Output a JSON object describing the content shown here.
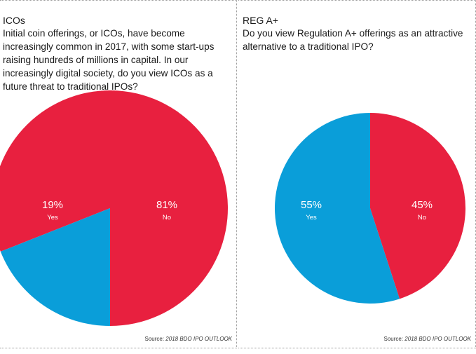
{
  "colors": {
    "no": "#e8203f",
    "yes": "#0a9ed9"
  },
  "left": {
    "title": "ICOs",
    "question": "Initial coin offerings, or ICOs, have become increasingly common in 2017, with some start-ups raising hundreds of millions in capital. In our increasingly digital society, do you view ICOs as a future threat to traditional IPOs?",
    "source_label": "Source:",
    "source_name": "2018 BDO IPO OUTLOOK"
  },
  "right": {
    "title": "REG A+",
    "question": "Do you view Regulation A+ offerings as an attractive alternative to a traditional IPO?",
    "source_label": "Source:",
    "source_name": "2018 BDO IPO OUTLOOK"
  },
  "chart_data": [
    {
      "type": "pie",
      "title": "ICOs",
      "slices": [
        {
          "label": "No",
          "value": 81,
          "value_label": "81%",
          "color": "#e8203f"
        },
        {
          "label": "Yes",
          "value": 19,
          "value_label": "19%",
          "color": "#0a9ed9"
        }
      ]
    },
    {
      "type": "pie",
      "title": "REG A+",
      "slices": [
        {
          "label": "No",
          "value": 45,
          "value_label": "45%",
          "color": "#e8203f"
        },
        {
          "label": "Yes",
          "value": 55,
          "value_label": "55%",
          "color": "#0a9ed9"
        }
      ]
    }
  ]
}
